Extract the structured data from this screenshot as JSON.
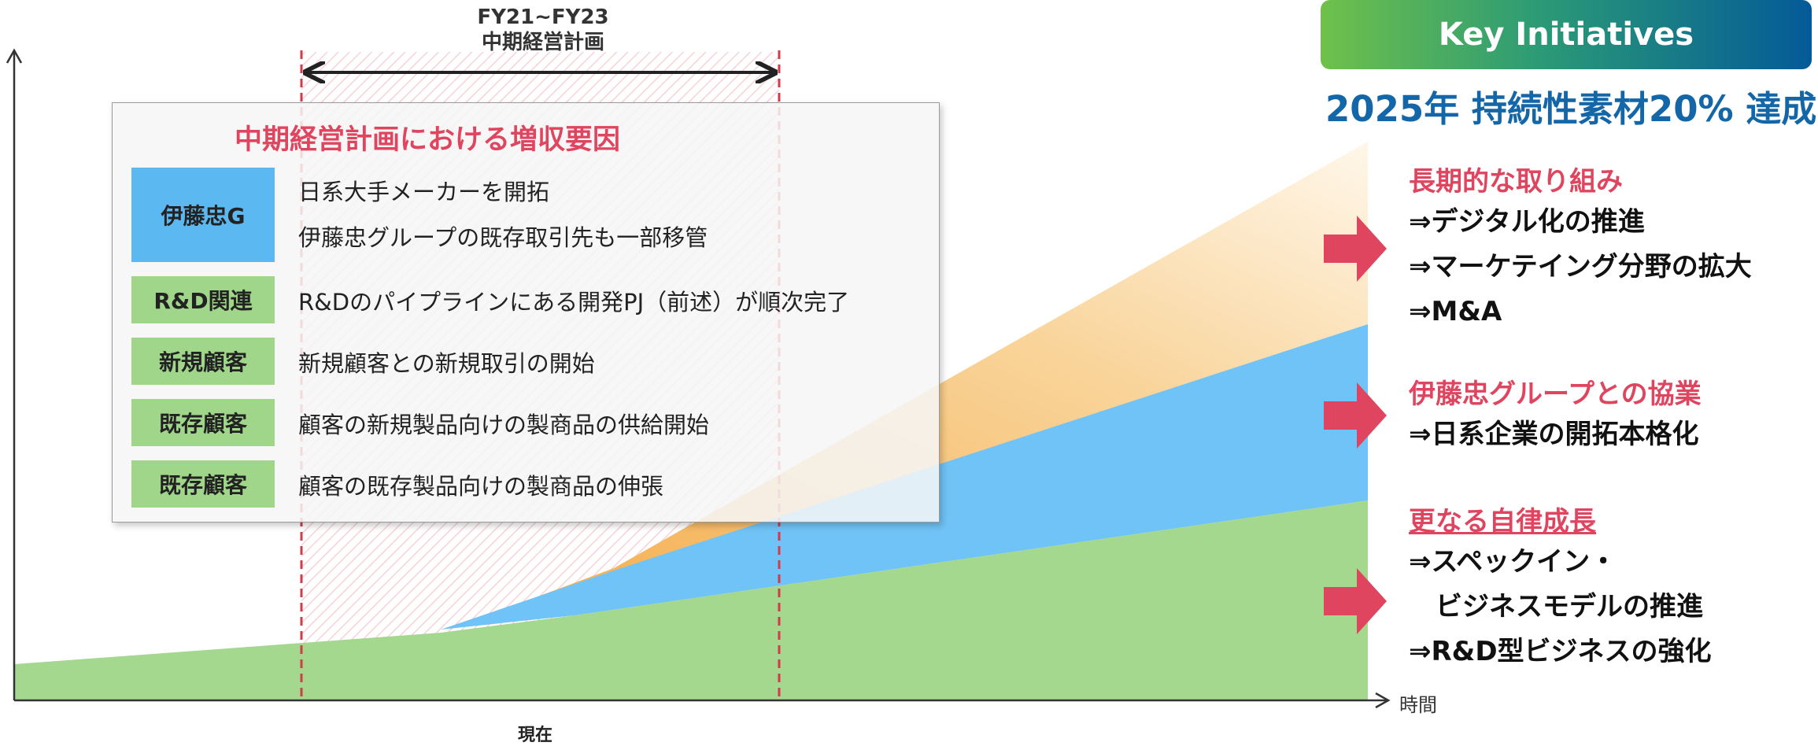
{
  "period": {
    "label": "FY21~FY23\n中期経営計画"
  },
  "axis": {
    "x_label": "時間",
    "now_label": "現在"
  },
  "chart_data": {
    "type": "area",
    "series": [
      {
        "color": "#a5d88f"
      },
      {
        "color": "#6fc3f6"
      },
      {
        "color": "#f7c878"
      }
    ]
  },
  "factors": {
    "title": "中期経営計画における増収要因",
    "rows": [
      {
        "tag": "伊藤忠G",
        "tag_color": "#5bb8f0",
        "lines": [
          "日系大手メーカーを開拓",
          "伊藤忠グループの既存取引先も一部移管"
        ]
      },
      {
        "tag": "R&D関連",
        "tag_color": "#a0d68a",
        "lines": [
          "R&Dのパイプラインにある開発PJ（前述）が順次完了"
        ]
      },
      {
        "tag": "新規顧客",
        "tag_color": "#a0d68a",
        "lines": [
          "新規顧客との新規取引の開始"
        ]
      },
      {
        "tag": "既存顧客",
        "tag_color": "#a0d68a",
        "lines": [
          "顧客の新規製品向けの製商品の供給開始"
        ]
      },
      {
        "tag": "既存顧客",
        "tag_color": "#a0d68a",
        "lines": [
          "顧客の既存製品向けの製商品の伸張"
        ]
      }
    ]
  },
  "key_initiatives": {
    "badge": "Key Initiatives",
    "goal": "2025年 持続性素材20% 達成",
    "groups": [
      {
        "heading": "長期的な取り組み",
        "items": [
          "⇒デジタル化の推進",
          "⇒マーケテイング分野の拡大",
          "⇒M&A"
        ],
        "arrow_icon": "right-arrow-icon"
      },
      {
        "heading": "伊藤忠グループとの協業",
        "items": [
          "⇒日系企業の開拓本格化"
        ],
        "arrow_icon": "right-arrow-icon"
      },
      {
        "heading": "更なる自律成長",
        "items": [
          "⇒スペックイン・",
          "　ビジネスモデルの推進",
          "⇒R&D型ビジネスの強化"
        ],
        "arrow_icon": "right-arrow-icon"
      }
    ]
  },
  "colors": {
    "accent_red": "#e0455f",
    "goal_blue": "#1366a8"
  }
}
